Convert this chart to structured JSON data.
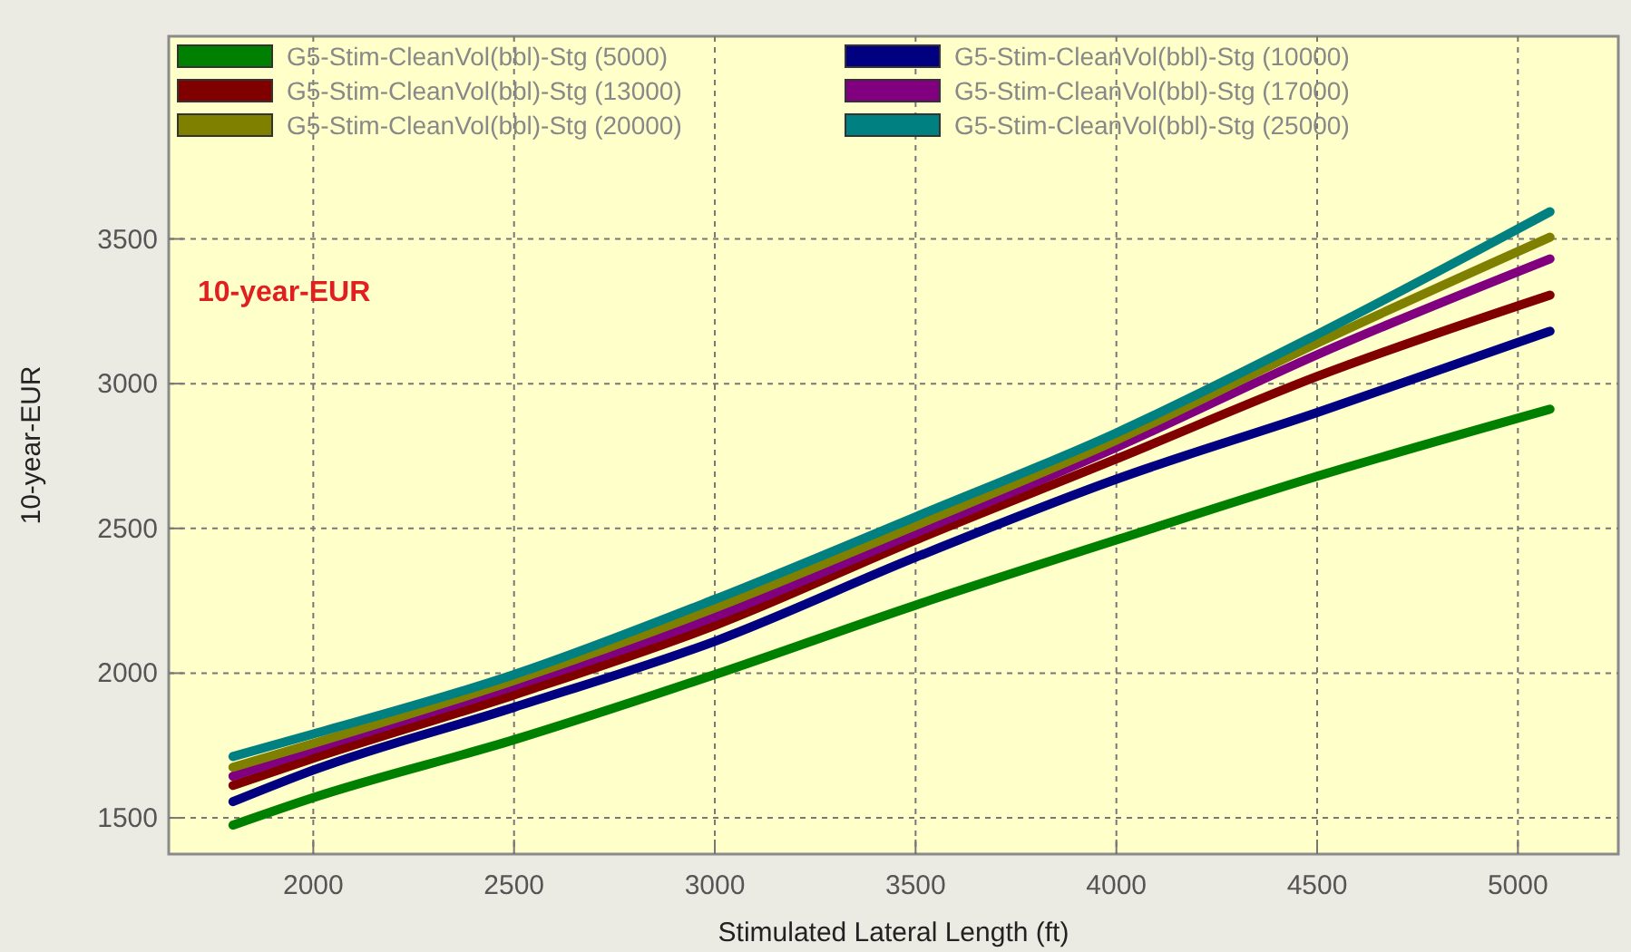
{
  "chart_data": {
    "type": "line",
    "xlabel": "Stimulated Lateral Length (ft)",
    "ylabel": "10-year-EUR",
    "annotations": [
      "10-year-EUR"
    ],
    "xlim": [
      1640,
      5250
    ],
    "ylim": [
      1375,
      4200
    ],
    "xticks": [
      2000,
      2500,
      3000,
      3500,
      4000,
      4500,
      5000
    ],
    "yticks": [
      1500,
      2000,
      2500,
      3000,
      3500
    ],
    "grid": true,
    "legend": "top left",
    "marker": "none",
    "line_style": "solid",
    "x": [
      1800,
      2000,
      2500,
      3000,
      3500,
      4000,
      4500,
      5080
    ],
    "series": [
      {
        "name": "G5-Stim-CleanVol(bbl)-Stg (5000)",
        "color": "#008000",
        "values": [
          1475,
          1570,
          1770,
          1995,
          2235,
          2460,
          2680,
          2912
        ]
      },
      {
        "name": "G5-Stim-CleanVol(bbl)-Stg (10000)",
        "color": "#000080",
        "values": [
          1556,
          1665,
          1882,
          2110,
          2400,
          2670,
          2900,
          3181
        ]
      },
      {
        "name": "G5-Stim-CleanVol(bbl)-Stg (13000)",
        "color": "#800000",
        "values": [
          1612,
          1706,
          1925,
          2165,
          2460,
          2740,
          3025,
          3306
        ]
      },
      {
        "name": "G5-Stim-CleanVol(bbl)-Stg (17000)",
        "color": "#800080",
        "values": [
          1644,
          1737,
          1956,
          2195,
          2485,
          2780,
          3100,
          3431
        ]
      },
      {
        "name": "G5-Stim-CleanVol(bbl)-Stg (20000)",
        "color": "#808000",
        "values": [
          1675,
          1757,
          1975,
          2225,
          2510,
          2805,
          3140,
          3506
        ]
      },
      {
        "name": "G5-Stim-CleanVol(bbl)-Stg (25000)",
        "color": "#008080",
        "values": [
          1712,
          1790,
          1995,
          2255,
          2540,
          2830,
          3170,
          3594
        ]
      }
    ]
  }
}
